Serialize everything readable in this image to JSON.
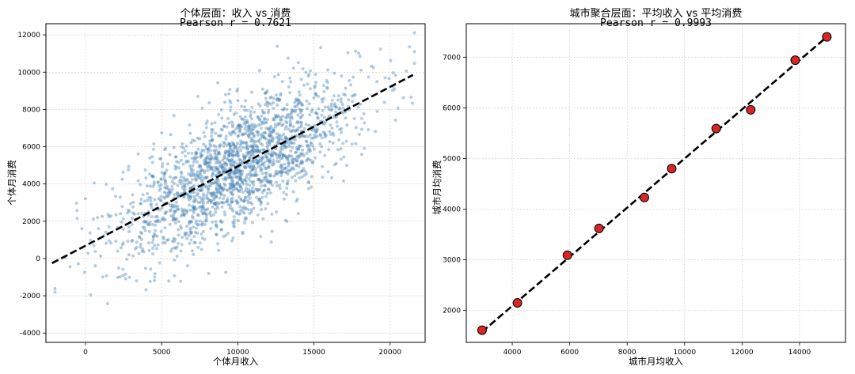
{
  "chart_data": [
    {
      "type": "scatter",
      "title": "个体层面：收入 vs 消费",
      "subtitle": "Pearson r = 0.7621",
      "xlabel": "个体月收入",
      "ylabel": "个体月消费",
      "xlim": [
        -2600,
        22300
      ],
      "ylim": [
        -4500,
        12600
      ],
      "xticks": [
        0,
        5000,
        10000,
        15000,
        20000
      ],
      "yticks": [
        -4000,
        -2000,
        0,
        2000,
        4000,
        6000,
        8000,
        10000,
        12000
      ],
      "grid": true,
      "point_count": 2000,
      "point_color": "#4682b4",
      "trend_line": {
        "x": [
          -2200,
          21500
        ],
        "y": [
          -250,
          9850
        ],
        "style": "dashed",
        "color": "#000000"
      }
    },
    {
      "type": "scatter",
      "title": "城市聚合层面：平均收入 vs 平均消费",
      "subtitle": "Pearson r = 0.9993",
      "xlabel": "城市月均收入",
      "ylabel": "城市月均消费",
      "xlim": [
        2400,
        15600
      ],
      "ylim": [
        1370,
        7660
      ],
      "xticks": [
        4000,
        6000,
        8000,
        10000,
        12000,
        14000
      ],
      "yticks": [
        2000,
        3000,
        4000,
        5000,
        6000,
        7000
      ],
      "grid": true,
      "point_color": "#d62728",
      "points": [
        {
          "x": 2950,
          "y": 1610
        },
        {
          "x": 4180,
          "y": 2150
        },
        {
          "x": 5920,
          "y": 3090
        },
        {
          "x": 7020,
          "y": 3620
        },
        {
          "x": 8600,
          "y": 4230
        },
        {
          "x": 9550,
          "y": 4800
        },
        {
          "x": 11100,
          "y": 5590
        },
        {
          "x": 12300,
          "y": 5960
        },
        {
          "x": 13850,
          "y": 6940
        },
        {
          "x": 14950,
          "y": 7400
        }
      ],
      "trend_line": {
        "x": [
          2950,
          14950
        ],
        "y": [
          1580,
          7400
        ],
        "style": "dashed",
        "color": "#000000"
      }
    }
  ]
}
